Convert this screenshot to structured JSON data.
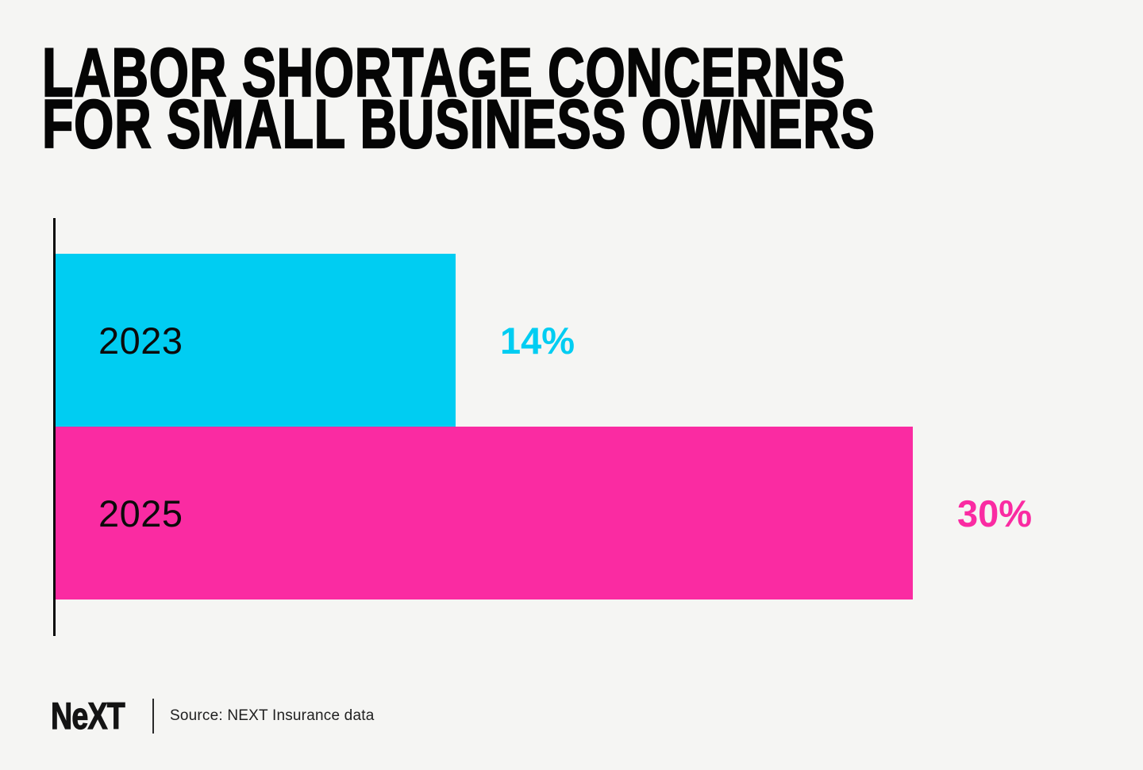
{
  "header": {
    "title_line1": "LABOR SHORTAGE CONCERNS",
    "title_line2": "FOR SMALL BUSINESS OWNERS"
  },
  "chart_data": {
    "type": "bar",
    "orientation": "horizontal",
    "title": "Labor shortage concerns for small business owners",
    "categories": [
      "2023",
      "2025"
    ],
    "values": [
      14,
      30
    ],
    "value_labels": [
      "14%",
      "30%"
    ],
    "unit": "percent",
    "bar_colors": [
      "#00cdf2",
      "#fa2ba2"
    ],
    "xlabel": "",
    "ylabel": "",
    "xlim": [
      0,
      38
    ],
    "grid": false,
    "legend": false,
    "axis_line": "left-vertical-black"
  },
  "footer": {
    "logo_text": "NeXT",
    "source_text": "Source: NEXT Insurance data"
  },
  "theme": {
    "background": "#f5f5f3",
    "title_color": "#050505",
    "year_label_color": "#0b0b0b",
    "accent_cyan": "#00cdf2",
    "accent_pink": "#fa2ba2"
  }
}
